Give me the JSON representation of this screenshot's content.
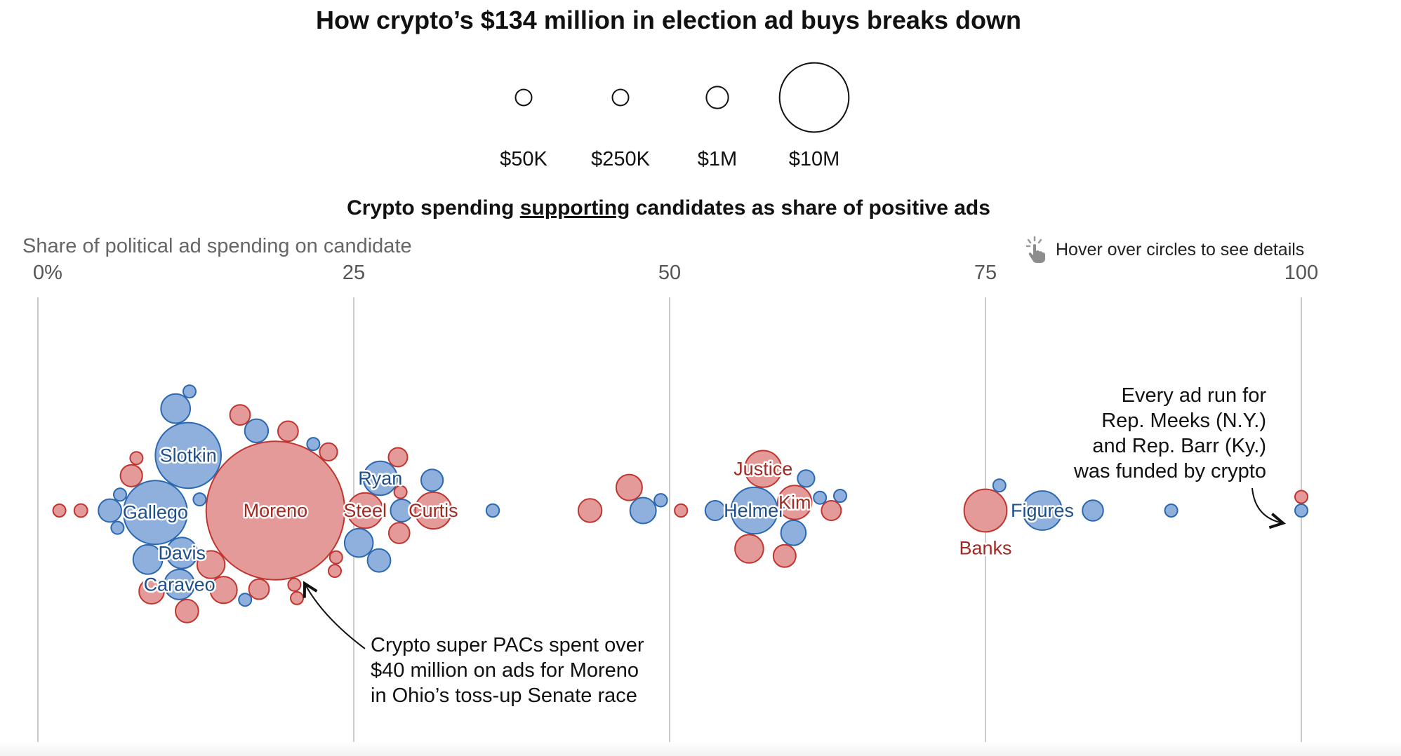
{
  "title": "How crypto’s $134 million in election ad buys breaks down",
  "legend": {
    "sizes": [
      {
        "label": "$50K",
        "amount": 50000
      },
      {
        "label": "$250K",
        "amount": 250000
      },
      {
        "label": "$1M",
        "amount": 1000000
      },
      {
        "label": "$10M",
        "amount": 10000000
      }
    ]
  },
  "subtitle": {
    "before": "Crypto spending ",
    "emph": "supporting",
    "after": " candidates as share of positive ads"
  },
  "axis_title": "Share of political ad spending on candidate",
  "hover_hint": "Hover over circles to see details",
  "annotations": {
    "moreno": "Crypto super PACs spent over\n$40 million on ads for Moreno\nin Ohio’s toss-up Senate race",
    "meeks_barr": "Every ad run for\nRep. Meeks (N.Y.)\nand Rep. Barr (Ky.)\nwas funded by crypto"
  },
  "colors": {
    "democrat_fill": "#8fb0dc",
    "democrat_stroke": "#2b68b0",
    "republican_fill": "#e59a9a",
    "republican_stroke": "#c0352f",
    "democrat_label": "#1d4f8c",
    "republican_label": "#a32a23",
    "grid": "#cccccc"
  },
  "chart_data": {
    "type": "scatter",
    "subtype": "beeswarm",
    "title": "Crypto spending supporting candidates as share of positive ads",
    "xlabel": "Share of political ad spending on candidate",
    "xlim": [
      0,
      100
    ],
    "x_ticks": [
      {
        "value": 0,
        "label": "0%"
      },
      {
        "value": 25,
        "label": "25"
      },
      {
        "value": 50,
        "label": "50"
      },
      {
        "value": 75,
        "label": "75"
      },
      {
        "value": 100,
        "label": "100"
      }
    ],
    "size_encoding": "ad spending (USD)",
    "color_encoding": {
      "blue": "Democrat",
      "red": "Republican"
    },
    "points": [
      {
        "name": "Moreno",
        "party": "R",
        "x": 18.8,
        "amount": 40000000
      },
      {
        "name": "Slotkin",
        "party": "D",
        "x": 11.9,
        "amount": 9000000
      },
      {
        "name": "Gallego",
        "party": "D",
        "x": 9.3,
        "amount": 8500000
      },
      {
        "name": "Banks",
        "party": "R",
        "x": 75.0,
        "amount": 3800000
      },
      {
        "name": "Helmer",
        "party": "D",
        "x": 56.7,
        "amount": 4500000
      },
      {
        "name": "Figures",
        "party": "D",
        "x": 79.5,
        "amount": 3200000
      },
      {
        "name": "Justice",
        "party": "R",
        "x": 57.4,
        "amount": 2800000
      },
      {
        "name": "Kim",
        "party": "R",
        "x": 59.9,
        "amount": 2400000
      },
      {
        "name": "Curtis",
        "party": "R",
        "x": 31.3,
        "amount": 2800000
      },
      {
        "name": "Steel",
        "party": "R",
        "x": 25.9,
        "amount": 2600000
      },
      {
        "name": "Ryan",
        "party": "D",
        "x": 27.1,
        "amount": 2400000
      },
      {
        "name": "Davis",
        "party": "D",
        "x": 11.4,
        "amount": 2000000
      },
      {
        "name": "Caraveo",
        "party": "D",
        "x": 11.2,
        "amount": 1900000
      },
      {
        "name": "",
        "party": "D",
        "x": 10.9,
        "amount": 1800000
      },
      {
        "name": "",
        "party": "D",
        "x": 8.7,
        "amount": 1800000
      },
      {
        "name": "",
        "party": "D",
        "x": 5.7,
        "amount": 1100000
      },
      {
        "name": "",
        "party": "D",
        "x": 6.5,
        "amount": 160000
      },
      {
        "name": "",
        "party": "D",
        "x": 6.3,
        "amount": 150000
      },
      {
        "name": "",
        "party": "D",
        "x": 12.0,
        "amount": 170000
      },
      {
        "name": "",
        "party": "D",
        "x": 12.8,
        "amount": 160000
      },
      {
        "name": "",
        "party": "D",
        "x": 16.4,
        "amount": 200000
      },
      {
        "name": "",
        "party": "D",
        "x": 17.3,
        "amount": 1150000
      },
      {
        "name": "",
        "party": "D",
        "x": 21.8,
        "amount": 150000
      },
      {
        "name": "",
        "party": "D",
        "x": 27.0,
        "amount": 1100000
      },
      {
        "name": "",
        "party": "D",
        "x": 25.4,
        "amount": 1700000
      },
      {
        "name": "",
        "party": "D",
        "x": 28.8,
        "amount": 1050000
      },
      {
        "name": "",
        "party": "D",
        "x": 31.2,
        "amount": 1000000
      },
      {
        "name": "",
        "party": "D",
        "x": 36.0,
        "amount": 350000
      },
      {
        "name": "",
        "party": "D",
        "x": 47.9,
        "amount": 1400000
      },
      {
        "name": "",
        "party": "D",
        "x": 49.3,
        "amount": 350000
      },
      {
        "name": "",
        "party": "D",
        "x": 53.6,
        "amount": 800000
      },
      {
        "name": "",
        "party": "D",
        "x": 60.8,
        "amount": 600000
      },
      {
        "name": "",
        "party": "D",
        "x": 61.9,
        "amount": 250000
      },
      {
        "name": "",
        "party": "D",
        "x": 63.5,
        "amount": 250000
      },
      {
        "name": "",
        "party": "D",
        "x": 59.8,
        "amount": 1300000
      },
      {
        "name": "",
        "party": "D",
        "x": 76.1,
        "amount": 280000
      },
      {
        "name": "",
        "party": "D",
        "x": 83.5,
        "amount": 900000
      },
      {
        "name": "",
        "party": "D",
        "x": 89.7,
        "amount": 250000
      },
      {
        "name": "",
        "party": "D",
        "x": 100.0,
        "amount": 170000
      },
      {
        "name": "",
        "party": "R",
        "x": 1.7,
        "amount": 200000
      },
      {
        "name": "",
        "party": "R",
        "x": 3.4,
        "amount": 360000
      },
      {
        "name": "",
        "party": "R",
        "x": 7.8,
        "amount": 160000
      },
      {
        "name": "",
        "party": "R",
        "x": 9.0,
        "amount": 1300000
      },
      {
        "name": "",
        "party": "R",
        "x": 11.8,
        "amount": 1100000
      },
      {
        "name": "",
        "party": "R",
        "x": 7.4,
        "amount": 1000000
      },
      {
        "name": "",
        "party": "R",
        "x": 14.7,
        "amount": 1500000
      },
      {
        "name": "",
        "party": "R",
        "x": 17.5,
        "amount": 850000
      },
      {
        "name": "",
        "party": "R",
        "x": 19.8,
        "amount": 850000
      },
      {
        "name": "",
        "party": "R",
        "x": 20.3,
        "amount": 320000
      },
      {
        "name": "",
        "party": "R",
        "x": 23.6,
        "amount": 320000
      },
      {
        "name": "",
        "party": "R",
        "x": 28.6,
        "amount": 900000
      },
      {
        "name": "",
        "party": "R",
        "x": 28.5,
        "amount": 750000
      },
      {
        "name": "",
        "party": "R",
        "x": 28.7,
        "amount": 250000
      },
      {
        "name": "",
        "party": "R",
        "x": 23.0,
        "amount": 650000
      },
      {
        "name": "",
        "party": "R",
        "x": 16.0,
        "amount": 850000
      },
      {
        "name": "",
        "party": "R",
        "x": 13.7,
        "amount": 1600000
      },
      {
        "name": "",
        "party": "R",
        "x": 20.5,
        "amount": 250000
      },
      {
        "name": "",
        "party": "R",
        "x": 23.5,
        "amount": 180000
      },
      {
        "name": "",
        "party": "R",
        "x": 43.7,
        "amount": 1150000
      },
      {
        "name": "",
        "party": "R",
        "x": 46.8,
        "amount": 1400000
      },
      {
        "name": "",
        "party": "R",
        "x": 50.9,
        "amount": 340000
      },
      {
        "name": "",
        "party": "R",
        "x": 56.3,
        "amount": 1700000
      },
      {
        "name": "",
        "party": "R",
        "x": 59.1,
        "amount": 1050000
      },
      {
        "name": "",
        "party": "R",
        "x": 62.8,
        "amount": 800000
      },
      {
        "name": "",
        "party": "R",
        "x": 100.0,
        "amount": 200000
      }
    ]
  }
}
